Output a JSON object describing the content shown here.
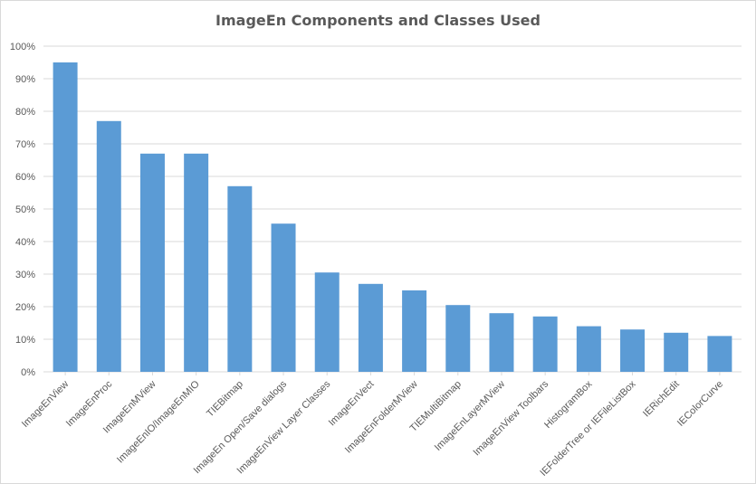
{
  "chart_data": {
    "type": "bar",
    "title": "ImageEn Components and Classes Used",
    "xlabel": "",
    "ylabel": "",
    "ylim": [
      0,
      100
    ],
    "y_ticks": [
      "0%",
      "10%",
      "20%",
      "30%",
      "40%",
      "50%",
      "60%",
      "70%",
      "80%",
      "90%",
      "100%"
    ],
    "grid": true,
    "legend": "none",
    "bar_color": "#5b9bd5",
    "categories": [
      "ImageEnView",
      "ImageEnProc",
      "ImageEnMView",
      "ImageEnIO/ImageEnMIO",
      "TIEBitmap",
      "ImageEn Open/Save dialogs",
      "ImageEnView Layer Classes",
      "ImageEnVect",
      "ImageEnFolderMView",
      "TIEMultiBitmap",
      "ImageEnLayerMView",
      "ImageEnView Toolbars",
      "HistogramBox",
      "IEFolderTree or IEFileListBox",
      "IERichEdit",
      "IEColorCurve"
    ],
    "values": [
      95,
      77,
      67,
      67,
      57,
      45.5,
      30.5,
      27,
      25,
      20.5,
      18,
      17,
      14,
      13,
      12,
      11
    ]
  }
}
